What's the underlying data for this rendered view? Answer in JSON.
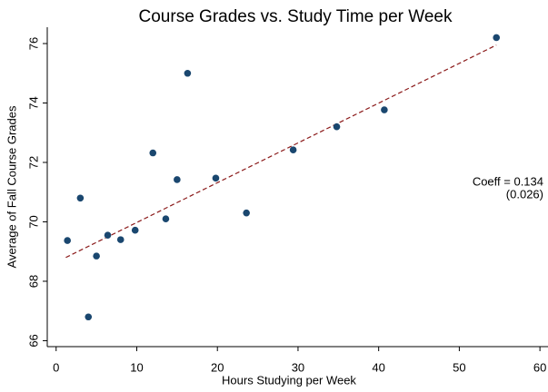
{
  "chart_data": {
    "type": "scatter",
    "title": "Course Grades vs. Study Time per Week",
    "x_label": "Hours Studying per Week",
    "y_label": "Average of Fall Course Grades",
    "x": [
      1.4,
      3.0,
      4.0,
      5.0,
      6.4,
      8.0,
      9.8,
      12.0,
      13.6,
      15.0,
      16.3,
      19.8,
      23.6,
      29.4,
      34.8,
      40.7,
      54.6
    ],
    "values": [
      69.37,
      70.8,
      66.8,
      68.85,
      69.55,
      69.4,
      69.72,
      72.32,
      70.1,
      71.42,
      75.0,
      71.47,
      70.3,
      72.42,
      73.2,
      73.77,
      76.2
    ],
    "color": "#1a476f",
    "fit": {
      "x": [
        1.2,
        54.6
      ],
      "y": [
        68.8,
        75.95
      ],
      "color": "#8b1a1a"
    },
    "annotation": [
      "Coeff = 0.134",
      "(0.026)"
    ],
    "xlim": [
      -1.1,
      61
    ],
    "xticks": [
      0,
      10,
      20,
      30,
      40,
      50,
      60
    ],
    "ylim": [
      65.8,
      76.55
    ],
    "yticks": [
      66,
      68,
      70,
      72,
      74,
      76
    ]
  }
}
